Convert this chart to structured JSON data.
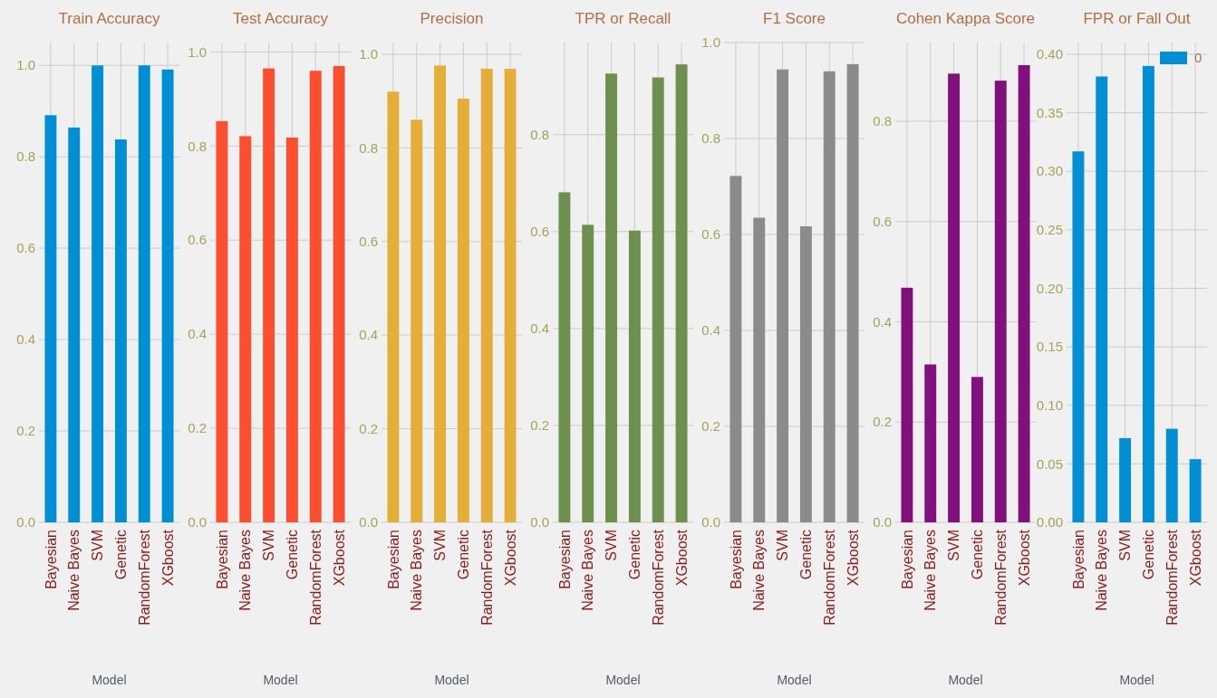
{
  "chart_data": [
    {
      "type": "bar",
      "title": "Train Accuracy",
      "xlabel": "Model",
      "categories": [
        "Bayesian",
        "Naive Bayes",
        "SVM",
        "Genetic",
        "RandomForest",
        "XGboost"
      ],
      "values": [
        0.891,
        0.864,
        1.0,
        0.838,
        1.0,
        0.991
      ],
      "color": "#008fd5",
      "ylim": [
        0,
        1.05
      ],
      "yticks": [
        {
          "value": 0,
          "label": "0.0"
        },
        {
          "value": 0.2,
          "label": "0.2"
        },
        {
          "value": 0.4,
          "label": "0.4"
        },
        {
          "value": 0.6,
          "label": "0.6"
        },
        {
          "value": 0.8,
          "label": "0.8"
        },
        {
          "value": 1,
          "label": "1.0"
        }
      ],
      "grid": true
    },
    {
      "type": "bar",
      "title": "Test Accuracy",
      "xlabel": "Model",
      "categories": [
        "Bayesian",
        "Naive Bayes",
        "SVM",
        "Genetic",
        "RandomForest",
        "XGboost"
      ],
      "values": [
        0.853,
        0.821,
        0.965,
        0.818,
        0.96,
        0.97
      ],
      "color": "#fc4f30",
      "ylim": [
        0,
        1.02
      ],
      "yticks": [
        {
          "value": 0,
          "label": "0.0"
        },
        {
          "value": 0.2,
          "label": "0.2"
        },
        {
          "value": 0.4,
          "label": "0.4"
        },
        {
          "value": 0.6,
          "label": "0.6"
        },
        {
          "value": 0.8,
          "label": "0.8"
        },
        {
          "value": 1,
          "label": "1.0"
        }
      ],
      "grid": true
    },
    {
      "type": "bar",
      "title": "Precision",
      "xlabel": "Model",
      "categories": [
        "Bayesian",
        "Naive Bayes",
        "SVM",
        "Genetic",
        "RandomForest",
        "XGboost"
      ],
      "values": [
        0.92,
        0.86,
        0.976,
        0.905,
        0.969,
        0.969
      ],
      "color": "#e5ae38",
      "ylim": [
        0,
        1.025
      ],
      "yticks": [
        {
          "value": 0,
          "label": "0.0"
        },
        {
          "value": 0.2,
          "label": "0.2"
        },
        {
          "value": 0.4,
          "label": "0.4"
        },
        {
          "value": 0.6,
          "label": "0.6"
        },
        {
          "value": 0.8,
          "label": "0.8"
        },
        {
          "value": 1,
          "label": "1.0"
        }
      ],
      "grid": true
    },
    {
      "type": "bar",
      "title": "TPR or Recall",
      "xlabel": "Model",
      "categories": [
        "Bayesian",
        "Naive Bayes",
        "SVM",
        "Genetic",
        "RandomForest",
        "XGboost"
      ],
      "values": [
        0.681,
        0.614,
        0.926,
        0.602,
        0.918,
        0.945
      ],
      "color": "#6d904f",
      "ylim": [
        0,
        0.99
      ],
      "yticks": [
        {
          "value": 0,
          "label": "0.0"
        },
        {
          "value": 0.2,
          "label": "0.2"
        },
        {
          "value": 0.4,
          "label": "0.4"
        },
        {
          "value": 0.6,
          "label": "0.6"
        },
        {
          "value": 0.8,
          "label": "0.8"
        }
      ],
      "grid": true
    },
    {
      "type": "bar",
      "title": "F1 Score",
      "xlabel": "Model",
      "categories": [
        "Bayesian",
        "Naive Bayes",
        "SVM",
        "Genetic",
        "RandomForest",
        "XGboost"
      ],
      "values": [
        0.722,
        0.635,
        0.944,
        0.617,
        0.94,
        0.955
      ],
      "color": "#8b8b8b",
      "ylim": [
        0,
        1.0
      ],
      "yticks": [
        {
          "value": 0,
          "label": "0.0"
        },
        {
          "value": 0.2,
          "label": "0.2"
        },
        {
          "value": 0.4,
          "label": "0.4"
        },
        {
          "value": 0.6,
          "label": "0.6"
        },
        {
          "value": 0.8,
          "label": "0.8"
        },
        {
          "value": 1,
          "label": "1.0"
        }
      ],
      "grid": true
    },
    {
      "type": "bar",
      "title": "Cohen Kappa Score",
      "xlabel": "Model",
      "categories": [
        "Bayesian",
        "Naive Bayes",
        "SVM",
        "Genetic",
        "RandomForest",
        "XGboost"
      ],
      "values": [
        0.468,
        0.315,
        0.895,
        0.29,
        0.881,
        0.912
      ],
      "color": "#810f7c",
      "ylim": [
        0,
        0.957
      ],
      "yticks": [
        {
          "value": 0,
          "label": "0.0"
        },
        {
          "value": 0.2,
          "label": "0.2"
        },
        {
          "value": 0.4,
          "label": "0.4"
        },
        {
          "value": 0.6,
          "label": "0.6"
        },
        {
          "value": 0.8,
          "label": "0.8"
        }
      ],
      "grid": true
    },
    {
      "type": "bar",
      "title": "FPR or Fall Out",
      "xlabel": "Model",
      "categories": [
        "Bayesian",
        "Naive Bayes",
        "SVM",
        "Genetic",
        "RandomForest",
        "XGboost"
      ],
      "series": [
        {
          "name": "0",
          "color": "#008fd5",
          "values": [
            0.317,
            0.381,
            0.072,
            0.39,
            0.08,
            0.054
          ]
        }
      ],
      "ylim": [
        0,
        0.41
      ],
      "yticks": [
        {
          "value": 0,
          "label": "0.00"
        },
        {
          "value": 0.05,
          "label": "0.05"
        },
        {
          "value": 0.1,
          "label": "0.10"
        },
        {
          "value": 0.15,
          "label": "0.15"
        },
        {
          "value": 0.2,
          "label": "0.20"
        },
        {
          "value": 0.25,
          "label": "0.25"
        },
        {
          "value": 0.3,
          "label": "0.30"
        },
        {
          "value": 0.35,
          "label": "0.35"
        },
        {
          "value": 0.4,
          "label": "0.40"
        }
      ],
      "grid": true,
      "legend": "top right"
    }
  ]
}
